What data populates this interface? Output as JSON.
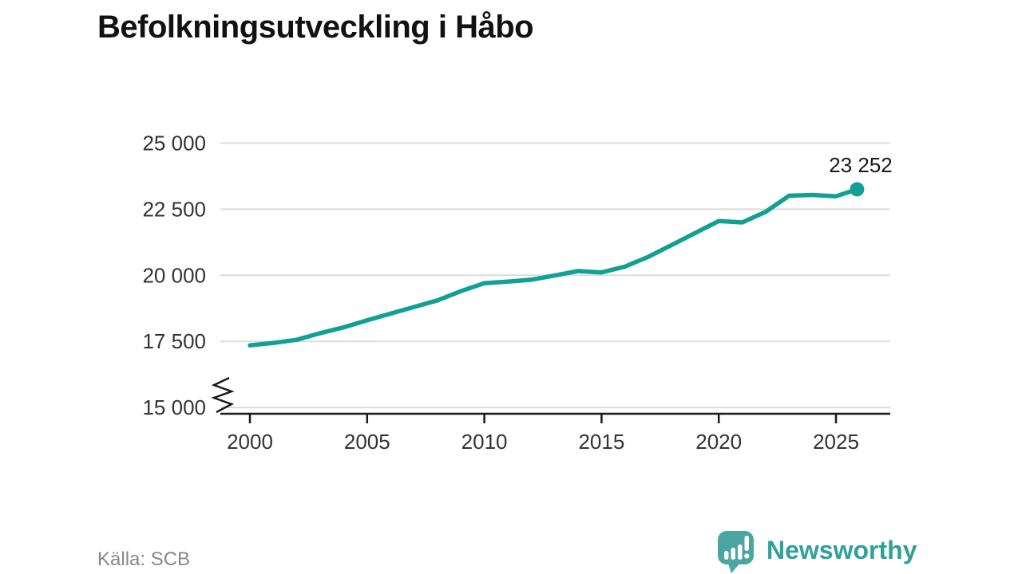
{
  "title": "Befolkningsutveckling i Håbo",
  "source": "Källa: SCB",
  "logo": {
    "text": "Newsworthy",
    "icon": "newsworthy-speech-bubble-chart-icon",
    "text_color": "#2FA09A",
    "icon_color": "#4BA5A1"
  },
  "colors": {
    "line": "#12A094",
    "marker": "#12A094",
    "grid": "#DCDCDC",
    "axis": "#1A1A1A",
    "tick_label": "#333333",
    "end_label": "#1A1A1A"
  },
  "chart_data": {
    "type": "line",
    "title": "Befolkningsutveckling i Håbo",
    "xlabel": "",
    "ylabel": "",
    "x": [
      2000,
      2001,
      2002,
      2003,
      2004,
      2005,
      2006,
      2007,
      2008,
      2009,
      2010,
      2011,
      2012,
      2013,
      2014,
      2015,
      2016,
      2017,
      2018,
      2019,
      2020,
      2021,
      2022,
      2023,
      2024,
      2025,
      2025.9
    ],
    "y": [
      17350,
      17440,
      17560,
      17810,
      18030,
      18300,
      18550,
      18800,
      19050,
      19400,
      19700,
      19760,
      19830,
      19990,
      20160,
      20110,
      20330,
      20700,
      21150,
      21600,
      22050,
      22000,
      22400,
      23010,
      23040,
      22990,
      23252
    ],
    "end_label": "23 252",
    "end_value": 23252,
    "xticks": {
      "values": [
        2000,
        2005,
        2010,
        2015,
        2020,
        2025
      ],
      "labels": [
        "2000",
        "2005",
        "2010",
        "2015",
        "2020",
        "2025"
      ]
    },
    "yticks": {
      "values": [
        25000,
        22500,
        20000,
        17500,
        15000
      ],
      "labels": [
        "25 000",
        "22 500",
        "20 000",
        "17 500",
        "15 000"
      ]
    },
    "ylim": [
      15000,
      25000
    ],
    "xlim": [
      2000,
      2027.3
    ],
    "grid": "horizontal-only",
    "axis_break": true,
    "legend": "none"
  }
}
